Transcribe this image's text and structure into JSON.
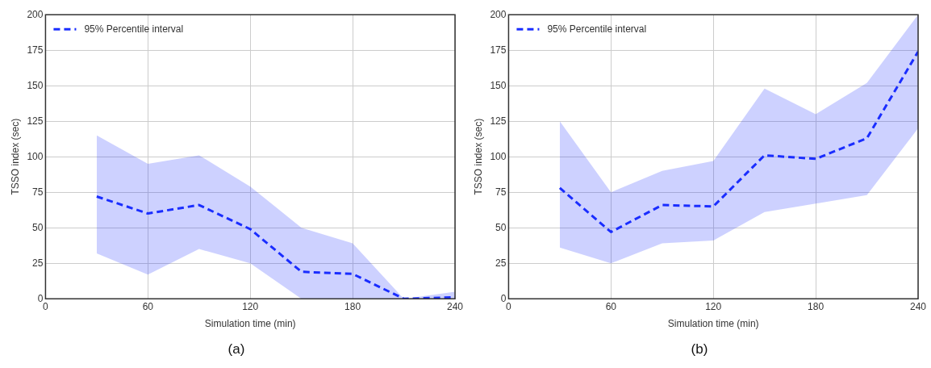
{
  "chart_data": [
    {
      "type": "line",
      "annotations": [
        "(a)"
      ],
      "xlabel": "Simulation time (min)",
      "ylabel": "TSSO index (sec)",
      "xlim": [
        0,
        240
      ],
      "xticks": [
        0,
        60,
        120,
        180,
        240
      ],
      "ylim": [
        0,
        200
      ],
      "yticks": [
        0,
        25,
        50,
        75,
        100,
        125,
        150,
        175,
        200
      ],
      "grid": true,
      "legend": "top left",
      "line_style": "dashed",
      "marker": "none",
      "x": [
        30,
        60,
        90,
        120,
        150,
        180,
        210,
        240
      ],
      "series": [
        {
          "name": "95% Percentile interval",
          "color": "#1a2eff",
          "values": [
            72,
            60,
            66,
            49,
            19,
            17.5,
            0,
            1
          ],
          "lower": [
            32,
            17,
            35,
            25,
            0,
            0,
            0,
            0
          ],
          "upper": [
            115,
            95,
            101,
            79,
            50,
            39,
            0,
            5
          ]
        }
      ]
    },
    {
      "type": "line",
      "annotations": [
        "(b)"
      ],
      "xlabel": "Simulation time (min)",
      "ylabel": "TSSO index (sec)",
      "xlim": [
        0,
        240
      ],
      "xticks": [
        0,
        60,
        120,
        180,
        240
      ],
      "ylim": [
        0,
        200
      ],
      "yticks": [
        0,
        25,
        50,
        75,
        100,
        125,
        150,
        175,
        200
      ],
      "grid": true,
      "legend": "top left",
      "line_style": "dashed",
      "marker": "none",
      "x": [
        30,
        60,
        90,
        120,
        150,
        180,
        210,
        240
      ],
      "series": [
        {
          "name": "95% Percentile interval",
          "color": "#1a2eff",
          "values": [
            78,
            47,
            66,
            65,
            101,
            98.5,
            113,
            174
          ],
          "lower": [
            36,
            25,
            39,
            41,
            61,
            67,
            73,
            120
          ],
          "upper": [
            125,
            75,
            90,
            97,
            148,
            130,
            152,
            200
          ]
        }
      ]
    }
  ]
}
